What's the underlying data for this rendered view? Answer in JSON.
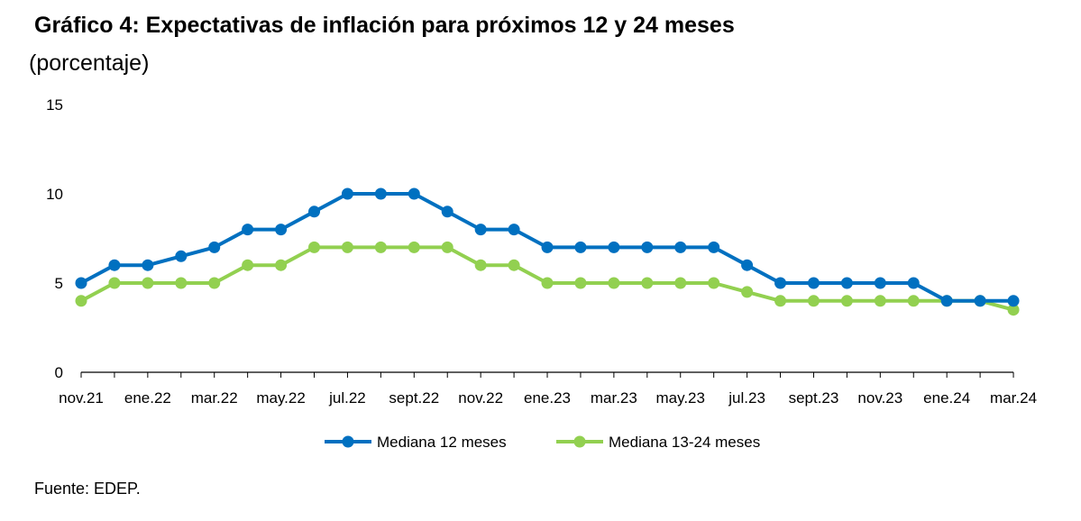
{
  "chart_data": {
    "type": "line",
    "title": "Gráfico 4: Expectativas de inflación para próximos 12 y 24 meses",
    "subtitle": "(porcentaje)",
    "xlabel": "",
    "ylabel": "",
    "ylim": [
      0,
      15
    ],
    "yticks": [
      0,
      5,
      10,
      15
    ],
    "grid": false,
    "legend_position": "bottom",
    "x": [
      "nov.21",
      "dic.21",
      "ene.22",
      "feb.22",
      "mar.22",
      "abr.22",
      "may.22",
      "jun.22",
      "jul.22",
      "ago.22",
      "sept.22",
      "oct.22",
      "nov.22",
      "dic.22",
      "ene.23",
      "feb.23",
      "mar.23",
      "abr.23",
      "may.23",
      "jun.23",
      "jul.23",
      "ago.23",
      "sept.23",
      "oct.23",
      "nov.23",
      "dic.23",
      "ene.24",
      "feb.24",
      "mar.24"
    ],
    "x_tick_labels": [
      "nov.21",
      "ene.22",
      "mar.22",
      "may.22",
      "jul.22",
      "sept.22",
      "nov.22",
      "ene.23",
      "mar.23",
      "may.23",
      "jul.23",
      "sept.23",
      "nov.23",
      "ene.24",
      "mar.24"
    ],
    "series": [
      {
        "name": "Mediana 12 meses",
        "color": "#0070C0",
        "values": [
          5,
          6,
          6,
          6.5,
          7,
          8,
          8,
          9,
          10,
          10,
          10,
          9,
          8,
          8,
          7,
          7,
          7,
          7,
          7,
          7,
          6,
          5,
          5,
          5,
          5,
          5,
          4,
          4,
          4
        ]
      },
      {
        "name": "Mediana 13-24 meses",
        "color": "#92D050",
        "values": [
          4,
          5,
          5,
          5,
          5,
          6,
          6,
          7,
          7,
          7,
          7,
          7,
          6,
          6,
          5,
          5,
          5,
          5,
          5,
          5,
          4.5,
          4,
          4,
          4,
          4,
          4,
          4,
          4,
          3.5
        ]
      }
    ]
  },
  "source": "Fuente: EDEP."
}
